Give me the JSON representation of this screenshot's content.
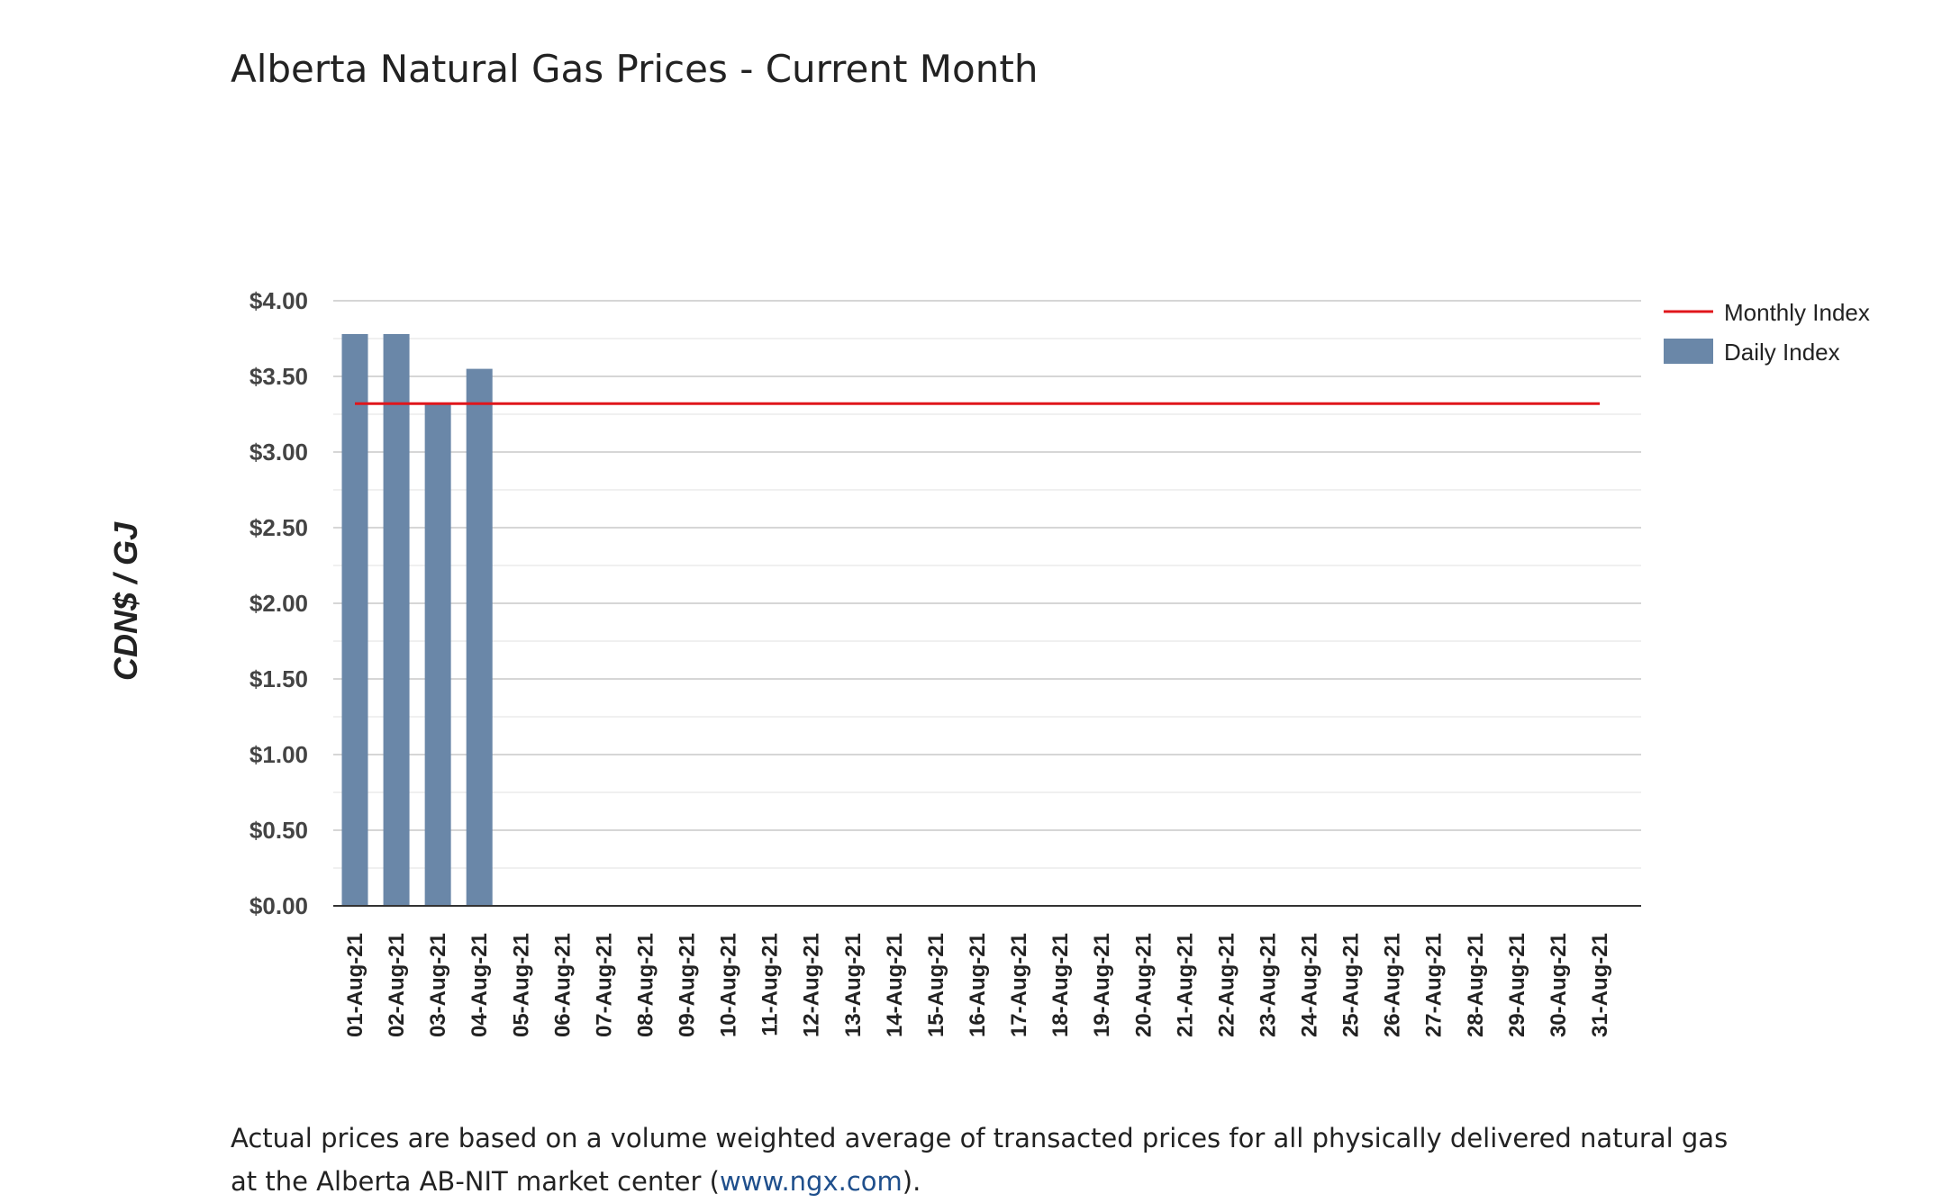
{
  "page": {
    "title": "Alberta Natural Gas Prices - Current Month",
    "footnote_text": "Actual prices are based on a volume weighted average of transacted prices for all physically delivered natural gas at the Alberta AB-NIT market center (",
    "footnote_link": "www.ngx.com",
    "footnote_end": ")."
  },
  "colors": {
    "bar": "#6a87a8",
    "line": "#e0161b",
    "grid": "#d6d6d6",
    "axis": "#333333"
  },
  "chart_data": {
    "type": "bar",
    "title": "Alberta Natural Gas Prices - Current Month",
    "xlabel": "",
    "ylabel": "CDN$ / GJ",
    "ylim": [
      0,
      4
    ],
    "ytick_values": [
      0,
      0.5,
      1,
      1.5,
      2,
      2.5,
      3,
      3.5,
      4
    ],
    "ytick_labels": [
      "$0.00",
      "$0.50",
      "$1.00",
      "$1.50",
      "$2.00",
      "$2.50",
      "$3.00",
      "$3.50",
      "$4.00"
    ],
    "categories": [
      "01-Aug-21",
      "02-Aug-21",
      "03-Aug-21",
      "04-Aug-21",
      "05-Aug-21",
      "06-Aug-21",
      "07-Aug-21",
      "08-Aug-21",
      "09-Aug-21",
      "10-Aug-21",
      "11-Aug-21",
      "12-Aug-21",
      "13-Aug-21",
      "14-Aug-21",
      "15-Aug-21",
      "16-Aug-21",
      "17-Aug-21",
      "18-Aug-21",
      "19-Aug-21",
      "20-Aug-21",
      "21-Aug-21",
      "22-Aug-21",
      "23-Aug-21",
      "24-Aug-21",
      "25-Aug-21",
      "26-Aug-21",
      "27-Aug-21",
      "28-Aug-21",
      "29-Aug-21",
      "30-Aug-21",
      "31-Aug-21"
    ],
    "series": [
      {
        "name": "Daily Index",
        "kind": "bar",
        "values": [
          3.78,
          3.78,
          3.32,
          3.55,
          null,
          null,
          null,
          null,
          null,
          null,
          null,
          null,
          null,
          null,
          null,
          null,
          null,
          null,
          null,
          null,
          null,
          null,
          null,
          null,
          null,
          null,
          null,
          null,
          null,
          null,
          null
        ]
      },
      {
        "name": "Monthly Index",
        "kind": "line",
        "values": [
          3.32,
          3.32,
          3.32,
          3.32,
          3.32,
          3.32,
          3.32,
          3.32,
          3.32,
          3.32,
          3.32,
          3.32,
          3.32,
          3.32,
          3.32,
          3.32,
          3.32,
          3.32,
          3.32,
          3.32,
          3.32,
          3.32,
          3.32,
          3.32,
          3.32,
          3.32,
          3.32,
          3.32,
          3.32,
          3.32,
          3.32
        ]
      }
    ],
    "legend": {
      "position": "top-right",
      "entries": [
        "Monthly Index",
        "Daily Index"
      ]
    },
    "grid": true
  }
}
